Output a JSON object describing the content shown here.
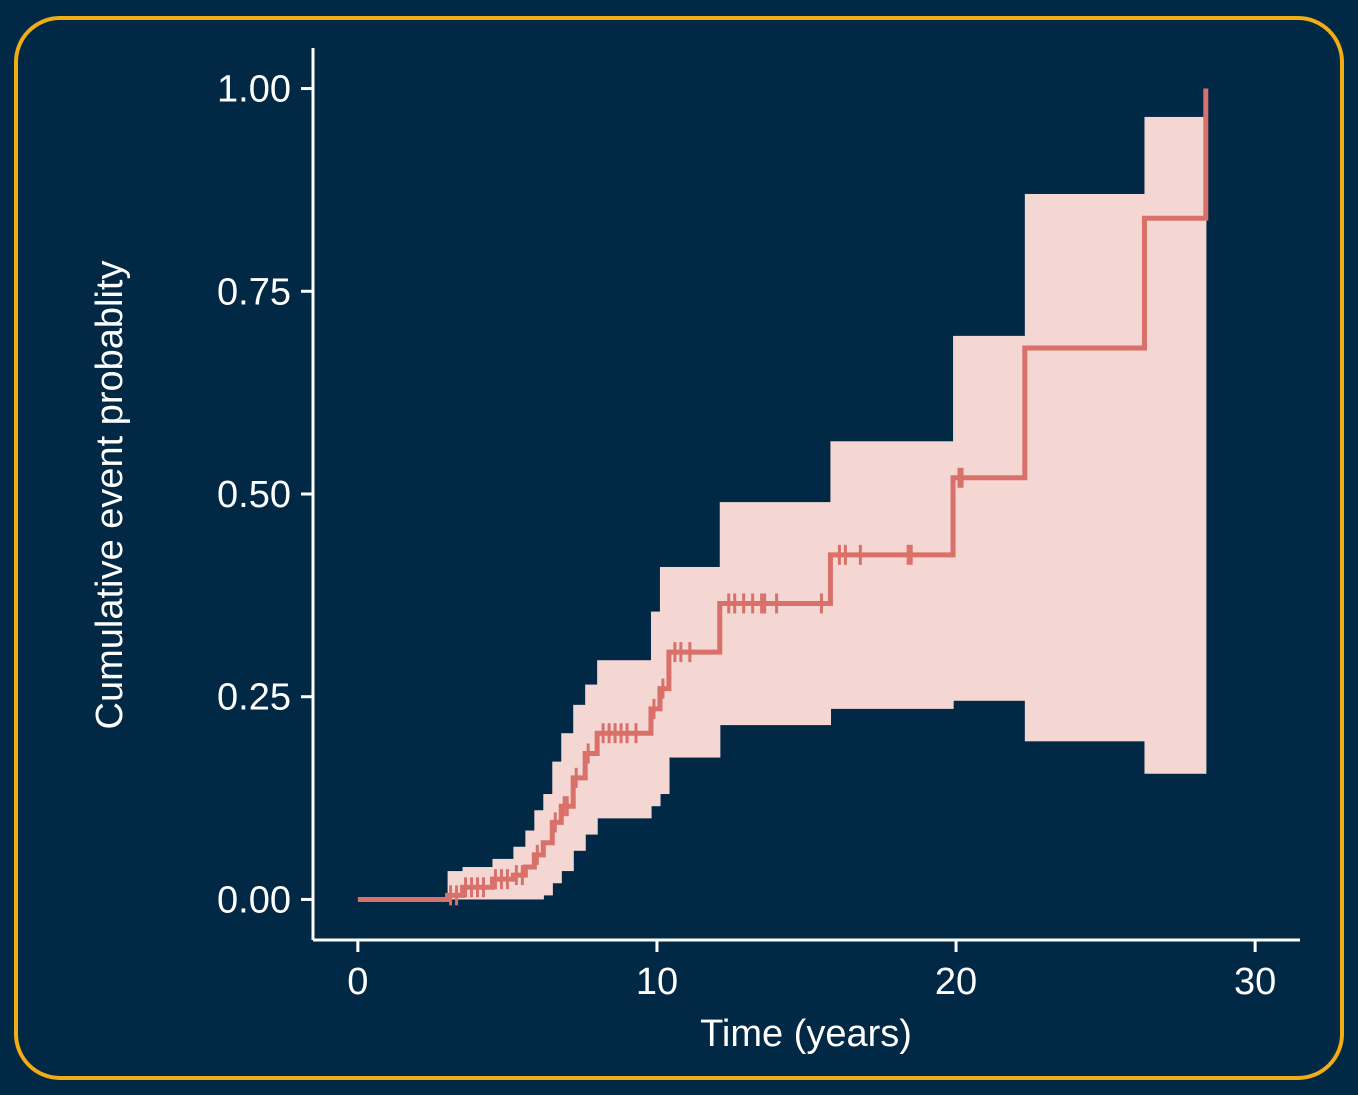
{
  "chart_data": {
    "type": "line",
    "title": "",
    "xlabel": "Time (years)",
    "ylabel": "Cumulative event probablity",
    "xlim": [
      -1.5,
      31.5
    ],
    "ylim": [
      -0.05,
      1.05
    ],
    "x_ticks": [
      0,
      10,
      20,
      30
    ],
    "y_ticks": [
      0.0,
      0.25,
      0.5,
      0.75,
      1.0
    ],
    "y_tick_labels": [
      "0.00",
      "0.25",
      "0.50",
      "0.75",
      "1.00"
    ],
    "x_tick_labels": [
      "0",
      "10",
      "20",
      "30"
    ],
    "grid": false,
    "legend": "none",
    "series": [
      {
        "style": "step",
        "color": "#d9706a",
        "band_color": "#f4d6d3",
        "x": [
          0,
          3.0,
          3.5,
          4.5,
          5.2,
          5.6,
          5.9,
          6.2,
          6.5,
          6.8,
          7.2,
          7.6,
          8.0,
          9.8,
          10.1,
          10.4,
          12.1,
          15.8,
          19.9,
          22.3,
          26.3,
          28.3,
          28.35
        ],
        "y": [
          0,
          0.005,
          0.015,
          0.025,
          0.03,
          0.04,
          0.055,
          0.07,
          0.095,
          0.115,
          0.15,
          0.18,
          0.205,
          0.235,
          0.26,
          0.305,
          0.365,
          0.425,
          0.52,
          0.68,
          0.84,
          0.84,
          1.0
        ],
        "lower": [
          0,
          0,
          0,
          0,
          0,
          0,
          0,
          0.005,
          0.02,
          0.035,
          0.06,
          0.08,
          0.1,
          0.115,
          0.13,
          0.175,
          0.215,
          0.235,
          0.245,
          0.195,
          0.155,
          0.155,
          0.155
        ],
        "upper": [
          0,
          0.035,
          0.04,
          0.05,
          0.065,
          0.085,
          0.11,
          0.13,
          0.17,
          0.205,
          0.24,
          0.265,
          0.295,
          0.355,
          0.41,
          0.41,
          0.49,
          0.565,
          0.695,
          0.87,
          0.965,
          0.965,
          0.965
        ],
        "censored": [
          [
            3.1,
            0.005
          ],
          [
            3.3,
            0.005
          ],
          [
            3.6,
            0.015
          ],
          [
            3.8,
            0.015
          ],
          [
            4.0,
            0.015
          ],
          [
            4.2,
            0.015
          ],
          [
            4.6,
            0.025
          ],
          [
            4.8,
            0.025
          ],
          [
            5.0,
            0.025
          ],
          [
            5.3,
            0.03
          ],
          [
            5.5,
            0.03
          ],
          [
            6.0,
            0.055
          ],
          [
            6.6,
            0.095
          ],
          [
            6.9,
            0.115
          ],
          [
            7.0,
            0.115
          ],
          [
            7.3,
            0.15
          ],
          [
            7.7,
            0.18
          ],
          [
            8.2,
            0.205
          ],
          [
            8.4,
            0.205
          ],
          [
            8.6,
            0.205
          ],
          [
            8.8,
            0.205
          ],
          [
            9.0,
            0.205
          ],
          [
            9.3,
            0.205
          ],
          [
            9.9,
            0.235
          ],
          [
            10.2,
            0.26
          ],
          [
            10.6,
            0.305
          ],
          [
            10.8,
            0.305
          ],
          [
            11.1,
            0.305
          ],
          [
            12.4,
            0.365
          ],
          [
            12.6,
            0.365
          ],
          [
            12.9,
            0.365
          ],
          [
            13.2,
            0.365
          ],
          [
            13.5,
            0.365
          ],
          [
            13.6,
            0.365
          ],
          [
            14.0,
            0.365
          ],
          [
            15.5,
            0.365
          ],
          [
            16.1,
            0.425
          ],
          [
            16.3,
            0.425
          ],
          [
            16.8,
            0.425
          ],
          [
            18.4,
            0.425
          ],
          [
            18.5,
            0.425
          ],
          [
            20.1,
            0.52
          ],
          [
            20.2,
            0.52
          ]
        ]
      }
    ]
  }
}
